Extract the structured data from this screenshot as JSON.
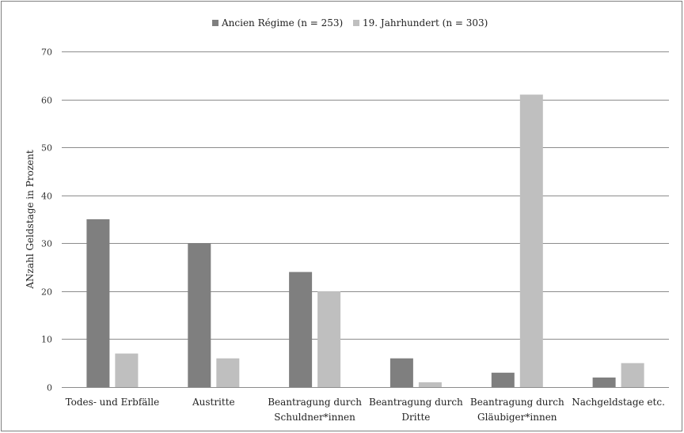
{
  "chart_data": {
    "type": "bar",
    "categories": [
      [
        "Todes- und Erbfälle"
      ],
      [
        "Austritte"
      ],
      [
        "Beantragung durch",
        "Schuldner*innen"
      ],
      [
        "Beantragung durch",
        "Dritte"
      ],
      [
        "Beantragung durch",
        "Gläubiger*innen"
      ],
      [
        "Nachgeldstage etc."
      ]
    ],
    "series": [
      {
        "name": "Ancien Régime (n = 253)",
        "color": "#7f7f7f",
        "values": [
          35,
          30,
          24,
          6,
          3,
          2
        ]
      },
      {
        "name": "19. Jahrhundert (n = 303)",
        "color": "#bfbfbf",
        "values": [
          7,
          6,
          20,
          1,
          61,
          5
        ]
      }
    ],
    "ylabel": "ANzahl Geldstage in Prozent",
    "xlabel": "",
    "ylim": [
      0,
      70
    ],
    "yticks": [
      0,
      10,
      20,
      30,
      40,
      50,
      60,
      70
    ],
    "grid": true,
    "legend_position": "top"
  }
}
